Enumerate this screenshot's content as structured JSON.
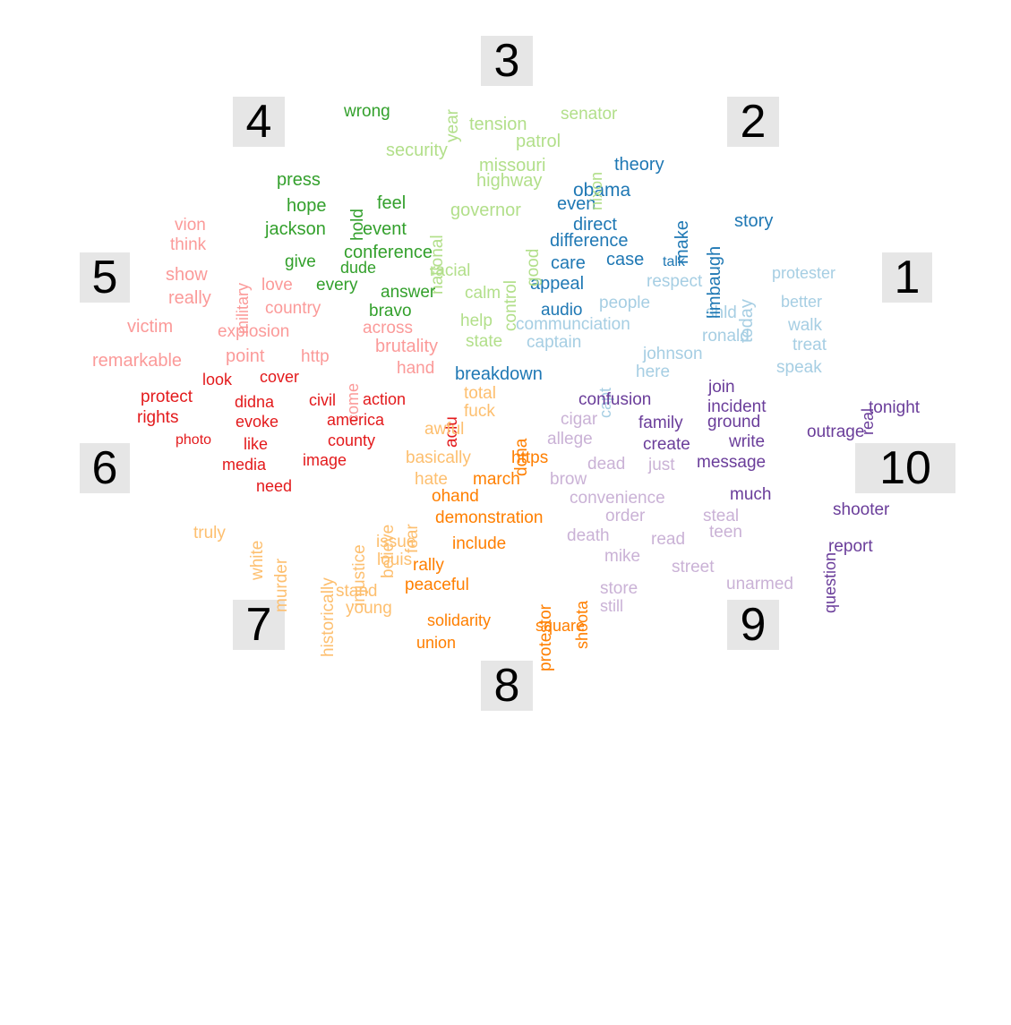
{
  "palette": {
    "c1": "#a6cee3",
    "c2": "#1f78b4",
    "c3": "#b2df8a",
    "c4": "#33a02c",
    "c5": "#fb9a99",
    "c6": "#e31a1c",
    "c7": "#fdbf6f",
    "c8": "#ff7f00",
    "c9": "#cab2d6",
    "c10": "#6a3d9a"
  },
  "clusters": [
    {
      "label": "1",
      "words": [
        "protester",
        "better",
        "walk",
        "treat",
        "speak",
        "today",
        "respect",
        "people",
        "shld",
        "ronald",
        "johnson",
        "here",
        "communciation",
        "captain",
        "capt"
      ]
    },
    {
      "label": "2",
      "words": [
        "theory",
        "obama",
        "even",
        "direct",
        "difference",
        "make",
        "limbaugh",
        "story",
        "care",
        "case",
        "talk",
        "appeal",
        "audio",
        "breakdown"
      ]
    },
    {
      "label": "3",
      "words": [
        "year",
        "tension",
        "senator",
        "patrol",
        "nixon",
        "security",
        "missouri",
        "highway",
        "governor",
        "national",
        "control",
        "good",
        "racial",
        "calm",
        "help",
        "state"
      ]
    },
    {
      "label": "4",
      "words": [
        "wrong",
        "press",
        "hold",
        "hope",
        "feel",
        "jackson",
        "event",
        "conference",
        "give",
        "dude",
        "every",
        "answer",
        "bravo"
      ]
    },
    {
      "label": "5",
      "words": [
        "vion",
        "think",
        "military",
        "show",
        "really",
        "love",
        "country",
        "victim",
        "explosion",
        "across",
        "remarkable",
        "point",
        "http",
        "come",
        "brutality",
        "hand"
      ]
    },
    {
      "label": "6",
      "words": [
        "look",
        "cover",
        "protect",
        "rights",
        "didna",
        "civil",
        "action",
        "evoke",
        "america",
        "photo",
        "like",
        "county",
        "media",
        "image",
        "need",
        "aclu"
      ]
    },
    {
      "label": "7",
      "words": [
        "total",
        "fuck",
        "awful",
        "basically",
        "hate",
        "truly",
        "white",
        "murder",
        "historically",
        "injustice",
        "believe",
        "fear",
        "issue",
        "louis",
        "stand",
        "young"
      ]
    },
    {
      "label": "8",
      "words": [
        "dona",
        "https",
        "march",
        "ohand",
        "demonstration",
        "include",
        "rally",
        "peaceful",
        "protestor",
        "shoota",
        "solidarity",
        "square",
        "union"
      ]
    },
    {
      "label": "9",
      "words": [
        "cigar",
        "allege",
        "dead",
        "just",
        "brow",
        "convenience",
        "order",
        "steal",
        "death",
        "read",
        "teen",
        "mike",
        "street",
        "store",
        "still",
        "unarmed"
      ]
    },
    {
      "label": "10",
      "words": [
        "confusion",
        "join",
        "incident",
        "real",
        "tonight",
        "family",
        "ground",
        "outrage",
        "create",
        "write",
        "message",
        "much",
        "question",
        "shooter",
        "report"
      ]
    }
  ]
}
